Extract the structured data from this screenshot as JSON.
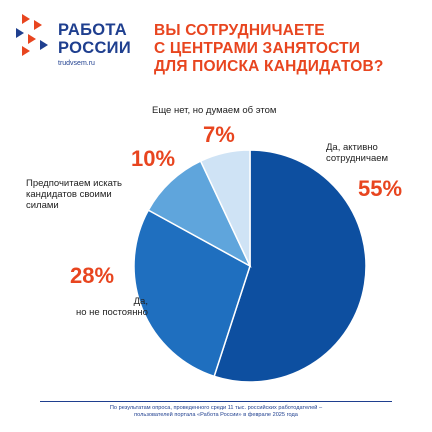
{
  "logo": {
    "line1": "РАБОТА",
    "line2": "РОССИИ",
    "url": "trudvsem.ru"
  },
  "headline": {
    "line1": "ВЫ СОТРУДНИЧАЕТЕ",
    "line2": "С ЦЕНТРАМИ ЗАНЯТОСТИ",
    "line3": "ДЛЯ ПОИСКА КАНДИДАТОВ?"
  },
  "colors": {
    "accent": "#e8451f",
    "brand": "#1f3f8f",
    "slice_1": "#0d4fa0",
    "slice_2": "#1f6fbf",
    "slice_3": "#5fa5dc",
    "slice_4": "#cfe3f5"
  },
  "chart_data": {
    "type": "pie",
    "slices": [
      {
        "label_lines": [
          "Да, активно",
          "сотрудничаем"
        ],
        "value": 55,
        "value_label": "55%"
      },
      {
        "label_lines": [
          "Да,",
          "но не постоянно"
        ],
        "value": 28,
        "value_label": "28%"
      },
      {
        "label_lines": [
          "Предпочитаем искать",
          "кандидатов своими",
          "силами"
        ],
        "value": 10,
        "value_label": "10%"
      },
      {
        "label_lines": [
          "Еще нет, но думаем об этом"
        ],
        "value": 7,
        "value_label": "7%"
      }
    ]
  },
  "footer": {
    "line1": "По результатам опроса, проведенного среди 11 тыс. российских работодателей –",
    "line2": "пользователей портала «Работа России» в феврале 2025 года"
  }
}
